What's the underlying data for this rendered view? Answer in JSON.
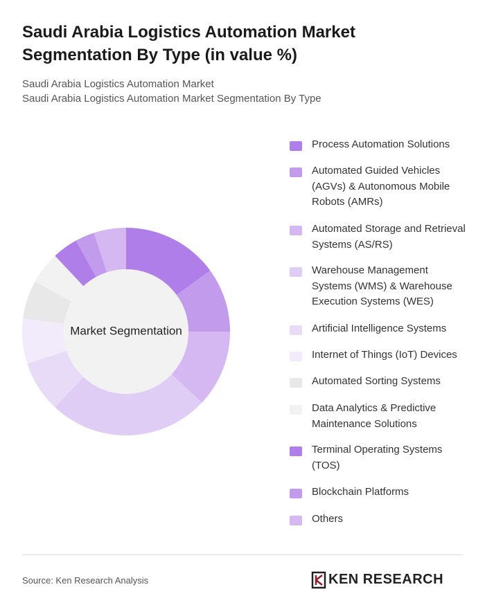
{
  "chart_data": {
    "type": "donut",
    "title": "Saudi Arabia Logistics Automation Market Segmentation By Type (in value %)",
    "subtitle": "Saudi Arabia Logistics Automation Market",
    "subtitle2": "Saudi Arabia Logistics Automation Market Segmentation By Type",
    "center_label": "Market Segmentation",
    "categories": [
      "Process Automation Solutions",
      "Automated Guided Vehicles (AGVs) & Autonomous Mobile Robots (AMRs)",
      "Automated Storage and Retrieval Systems (AS/RS)",
      "Warehouse Management Systems (WMS) & Warehouse Execution Systems (WES)",
      "Artificial Intelligence Systems",
      "Internet of Things (IoT) Devices",
      "Automated Sorting Systems",
      "Data Analytics & Predictive Maintenance Solutions",
      "Terminal Operating Systems (TOS)",
      "Blockchain Platforms",
      "Others"
    ],
    "values": [
      15,
      10,
      12,
      25,
      8,
      7,
      6,
      5,
      4,
      3,
      5
    ],
    "colors": [
      "#b07ee8",
      "#c39bed",
      "#d5b8f2",
      "#e0cdf6",
      "#e8dbf8",
      "#f2ebfb",
      "#e8e8e8",
      "#f2f2f2",
      "#b07ee8",
      "#c39bed",
      "#d5b8f2"
    ],
    "legend": "right"
  },
  "source": "Source: Ken Research Analysis",
  "brand": "KEN RESEARCH"
}
